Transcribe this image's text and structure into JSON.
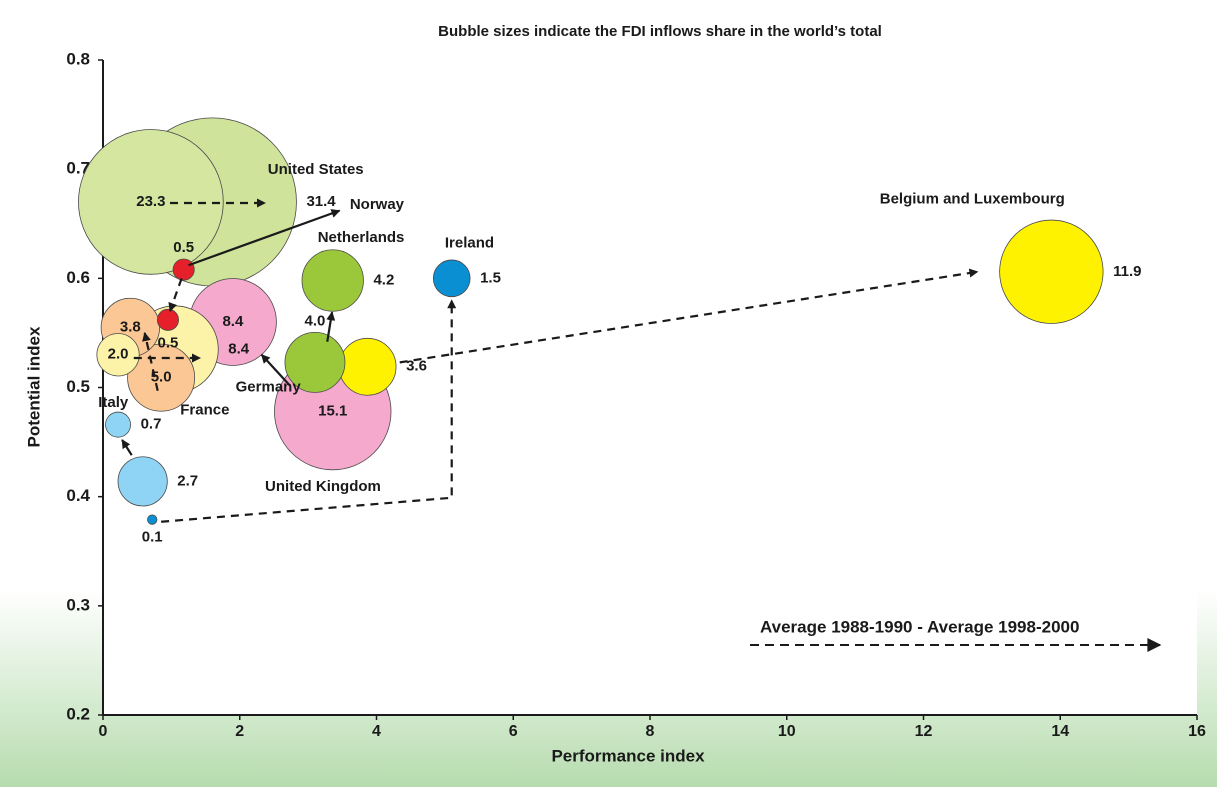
{
  "chart_data": {
    "type": "bubble",
    "title": "Bubble sizes indicate the FDI inflows share in the world’s total",
    "x_label": "Performance index",
    "y_label": "Potential index",
    "xlim": [
      0,
      16
    ],
    "ylim": [
      0.2,
      0.8
    ],
    "xticks": [
      0,
      2,
      4,
      6,
      8,
      10,
      12,
      14,
      16
    ],
    "yticks": [
      0.2,
      0.3,
      0.4,
      0.5,
      0.6,
      0.7,
      0.8
    ],
    "grid": false,
    "legend": "Average 1988-1990 - Average 1998-2000",
    "bubbles": [
      {
        "x": 1.6,
        "y": 0.67,
        "size": 31.4,
        "size_label": "31.4",
        "color": "#cfe39b",
        "label_side": "right"
      },
      {
        "x": 0.7,
        "y": 0.67,
        "size": 23.3,
        "size_label": "23.3",
        "color": "#d4e6a0",
        "label_side": "inside"
      },
      {
        "x": 3.36,
        "y": 0.478,
        "size": 15.1,
        "size_label": "15.1",
        "color": "#f4a9cd",
        "label_side": "inside"
      },
      {
        "x": 13.87,
        "y": 0.606,
        "size": 11.9,
        "size_label": "11.9",
        "color": "#fff200",
        "label_side": "right"
      },
      {
        "x": 1.9,
        "y": 0.56,
        "size": 8.4,
        "size_label": "8.4",
        "color": "#f4a9cd",
        "label_side": "inside"
      },
      {
        "x": 1.05,
        "y": 0.535,
        "size": 8.4,
        "size_label": "8.4",
        "color": "#fdf3a8",
        "label_side": "right"
      },
      {
        "x": 0.85,
        "y": 0.509,
        "size": 5.0,
        "size_label": "5.0",
        "color": "#fbc795",
        "label_side": "inside"
      },
      {
        "x": 0.4,
        "y": 0.555,
        "size": 3.8,
        "size_label": "3.8",
        "color": "#fbc795",
        "label_side": "inside"
      },
      {
        "x": 0.22,
        "y": 0.53,
        "size": 2.0,
        "size_label": "2.0",
        "color": "#fdf3a8",
        "label_side": "inside"
      },
      {
        "x": 3.87,
        "y": 0.519,
        "size": 3.6,
        "size_label": "3.6",
        "color": "#fff200",
        "label_side": "right"
      },
      {
        "x": 3.1,
        "y": 0.523,
        "size": 4.0,
        "size_label": "4.0",
        "color": "#9bc83a",
        "label_side": "above"
      },
      {
        "x": 3.36,
        "y": 0.598,
        "size": 4.2,
        "size_label": "4.2",
        "color": "#9bc83a",
        "label_side": "right"
      },
      {
        "x": 1.18,
        "y": 0.608,
        "size": 0.5,
        "size_label": "0.5",
        "color": "#e5202a",
        "label_side": "above"
      },
      {
        "x": 0.95,
        "y": 0.562,
        "size": 0.5,
        "size_label": "0.5",
        "color": "#e5202a",
        "label_side": "below"
      },
      {
        "x": 5.1,
        "y": 0.6,
        "size": 1.5,
        "size_label": "1.5",
        "color": "#0b8fd3",
        "label_side": "right"
      },
      {
        "x": 0.72,
        "y": 0.379,
        "size": 0.1,
        "size_label": "0.1",
        "color": "#0b8fd3",
        "label_side": "below"
      },
      {
        "x": 0.58,
        "y": 0.414,
        "size": 2.7,
        "size_label": "2.7",
        "color": "#8fd4f4",
        "label_side": "right"
      },
      {
        "x": 0.22,
        "y": 0.466,
        "size": 0.7,
        "size_label": "0.7",
        "color": "#8fd4f4",
        "label_side": "right"
      }
    ],
    "arrows": [
      {
        "x": [
          0.98,
          2.37
        ],
        "y": [
          0.669,
          0.669
        ],
        "dashed": true
      },
      {
        "x": [
          1.25,
          3.46
        ],
        "y": [
          0.612,
          0.662
        ],
        "dashed": false
      },
      {
        "x": [
          1.15,
          0.98
        ],
        "y": [
          0.6,
          0.57
        ],
        "dashed": true
      },
      {
        "x": [
          0.8,
          0.61
        ],
        "y": [
          0.497,
          0.55
        ],
        "dashed": true
      },
      {
        "x": [
          0.45,
          1.42
        ],
        "y": [
          0.527,
          0.527
        ],
        "dashed": true
      },
      {
        "x": [
          2.73,
          2.32
        ],
        "y": [
          0.502,
          0.53
        ],
        "dashed": false
      },
      {
        "x": [
          3.28,
          3.35
        ],
        "y": [
          0.542,
          0.569
        ],
        "dashed": false
      },
      {
        "x": [
          4.34,
          12.79
        ],
        "y": [
          0.523,
          0.606
        ],
        "dashed": true
      },
      {
        "x": [
          0.85,
          5.1,
          5.1
        ],
        "y": [
          0.377,
          0.399,
          0.58
        ],
        "dashed": true
      },
      {
        "x": [
          0.42,
          0.28
        ],
        "y": [
          0.438,
          0.452
        ],
        "dashed": false
      }
    ],
    "annotations": [
      {
        "text": "United States",
        "x": 2.41,
        "y": 0.699
      },
      {
        "text": "Norway",
        "x": 3.61,
        "y": 0.667
      },
      {
        "text": "Netherlands",
        "x": 3.14,
        "y": 0.637
      },
      {
        "text": "Ireland",
        "x": 5.0,
        "y": 0.632
      },
      {
        "text": "Belgium and Luxembourg",
        "x": 11.36,
        "y": 0.672
      },
      {
        "text": "Germany",
        "x": 1.94,
        "y": 0.5
      },
      {
        "text": "France",
        "x": 1.13,
        "y": 0.479
      },
      {
        "text": "Italy",
        "x": -0.07,
        "y": 0.486
      },
      {
        "text": "United Kingdom",
        "x": 2.37,
        "y": 0.409
      }
    ]
  }
}
